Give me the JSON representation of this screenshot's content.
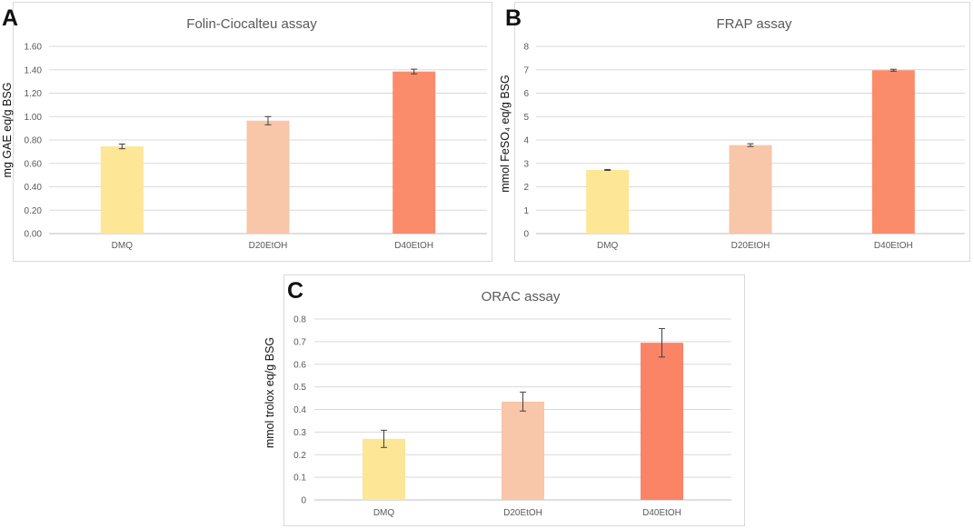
{
  "panels": [
    {
      "letter": "A"
    },
    {
      "letter": "B"
    },
    {
      "letter": "C"
    }
  ],
  "colors": {
    "DMQ": "#fde695",
    "D20EtOH": "#f8c6a8",
    "D40EtOH_A": "#fb8c6b",
    "D40EtOH_C": "#fb8366",
    "grid": "#d9d9d9",
    "axis": "#bfbfbf",
    "error_bar": "#404040"
  },
  "chart_data": [
    {
      "type": "bar",
      "title": "Folin-Ciocalteu assay",
      "ylabel": "mg GAE eq/g BSG",
      "xlabel": "",
      "categories": [
        "DMQ",
        "D20EtOH",
        "D40EtOH"
      ],
      "values": [
        0.745,
        0.965,
        1.385
      ],
      "errors": [
        0.02,
        0.035,
        0.02
      ],
      "ylim": [
        0,
        1.6
      ],
      "yticks": [
        "0.00",
        "0.20",
        "0.40",
        "0.60",
        "0.80",
        "1.00",
        "1.20",
        "1.40",
        "1.60"
      ],
      "grid": true
    },
    {
      "type": "bar",
      "title": "FRAP assay",
      "ylabel": "mmol FeSO₄ eq/g BSG",
      "xlabel": "",
      "categories": [
        "DMQ",
        "D20EtOH",
        "D40EtOH"
      ],
      "values": [
        2.72,
        3.78,
        6.98
      ],
      "errors": [
        0.02,
        0.06,
        0.04
      ],
      "ylim": [
        0,
        8
      ],
      "yticks": [
        "0",
        "1",
        "2",
        "3",
        "4",
        "5",
        "6",
        "7",
        "8"
      ],
      "grid": true
    },
    {
      "type": "bar",
      "title": "ORAC assay",
      "ylabel": "mmol trolox eq/g BSG",
      "xlabel": "",
      "categories": [
        "DMQ",
        "D20EtOH",
        "D40EtOH"
      ],
      "values": [
        0.27,
        0.435,
        0.695
      ],
      "errors": [
        0.038,
        0.042,
        0.063
      ],
      "ylim": [
        0,
        0.8
      ],
      "yticks": [
        "0",
        "0.1",
        "0.2",
        "0.3",
        "0.4",
        "0.5",
        "0.6",
        "0.7",
        "0.8"
      ],
      "grid": true
    }
  ]
}
